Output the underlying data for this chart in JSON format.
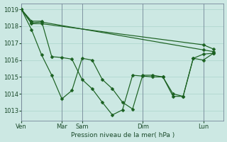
{
  "background_color": "#cce8e3",
  "grid_color": "#aad4cc",
  "line_color": "#1a6020",
  "xlabel": "Pression niveau de la mer( hPa )",
  "ylim": [
    1012.4,
    1019.35
  ],
  "yticks": [
    1013,
    1014,
    1015,
    1016,
    1017,
    1018,
    1019
  ],
  "day_x": [
    0,
    4,
    6,
    12,
    18
  ],
  "day_labels": [
    "Ven",
    "Mar",
    "Sam",
    "Dim",
    "Lun"
  ],
  "xlim": [
    0,
    20
  ],
  "line1_x": [
    0,
    1,
    2,
    3,
    4,
    5,
    6,
    7,
    8,
    9,
    10,
    11,
    12,
    13,
    14,
    15,
    16,
    17,
    18,
    19
  ],
  "line1_y": [
    1019.0,
    1017.8,
    1016.3,
    1015.1,
    1013.7,
    1014.2,
    1016.1,
    1016.0,
    1014.85,
    1014.3,
    1013.5,
    1013.1,
    1015.1,
    1015.1,
    1015.0,
    1013.85,
    1013.85,
    1016.1,
    1016.0,
    1016.4
  ],
  "line2_x": [
    0,
    1,
    2,
    3,
    4,
    5,
    6,
    7,
    8,
    9,
    10,
    11,
    12,
    13,
    14,
    15,
    16,
    17,
    18,
    19
  ],
  "line2_y": [
    1019.0,
    1018.3,
    1018.3,
    1016.2,
    1016.15,
    1016.05,
    1014.85,
    1014.3,
    1013.5,
    1012.75,
    1013.05,
    1015.1,
    1015.05,
    1015.0,
    1015.0,
    1014.0,
    1013.85,
    1016.1,
    1016.35,
    1016.4
  ],
  "line3_x": [
    0,
    1,
    2,
    18,
    19
  ],
  "line3_y": [
    1019.0,
    1018.2,
    1018.25,
    1016.6,
    1016.5
  ],
  "line4_x": [
    0,
    1,
    2,
    18,
    19
  ],
  "line4_y": [
    1019.0,
    1018.15,
    1018.15,
    1016.9,
    1016.65
  ]
}
